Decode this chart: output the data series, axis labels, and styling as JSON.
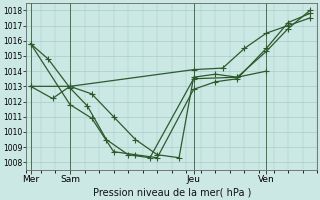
{
  "bg_color": "#cce8e4",
  "grid_color": "#9dc8c0",
  "line_color": "#2d5a2d",
  "xlabel": "Pression niveau de la mer( hPa )",
  "ylim": [
    1007.5,
    1018.5
  ],
  "yticks": [
    1008,
    1009,
    1010,
    1011,
    1012,
    1013,
    1014,
    1015,
    1016,
    1017,
    1018
  ],
  "xlim": [
    0,
    20
  ],
  "day_labels": [
    "Mer",
    "Sam",
    "Jeu",
    "Ven"
  ],
  "day_positions": [
    0.3,
    3.0,
    11.5,
    16.5
  ],
  "vline_positions": [
    0.3,
    3.0,
    11.5,
    16.5
  ],
  "series1_x": [
    0.3,
    1.5,
    3.0,
    4.2,
    5.5,
    7.0,
    8.5,
    11.5,
    14.5,
    16.5
  ],
  "series1_y": [
    1015.8,
    1014.8,
    1012.9,
    1011.7,
    1009.5,
    1008.5,
    1008.3,
    1013.5,
    1013.6,
    1014.0
  ],
  "series2_x": [
    0.3,
    3.0,
    4.5,
    6.0,
    7.5,
    9.0,
    11.5,
    13.0,
    14.5,
    16.5,
    18.0,
    19.5
  ],
  "series2_y": [
    1015.8,
    1011.8,
    1010.9,
    1008.7,
    1008.5,
    1008.3,
    1012.8,
    1013.3,
    1013.5,
    1015.5,
    1017.2,
    1017.8
  ],
  "series3_x": [
    0.3,
    3.0,
    11.5,
    13.5,
    15.0,
    16.5,
    18.0,
    19.5
  ],
  "series3_y": [
    1013.0,
    1013.0,
    1014.1,
    1014.2,
    1015.5,
    1016.5,
    1017.0,
    1017.5
  ],
  "series4_x": [
    0.3,
    1.8,
    3.0,
    4.5,
    6.0,
    7.5,
    9.0,
    10.5,
    11.5,
    13.0,
    14.5,
    16.5,
    18.0,
    19.5
  ],
  "series4_y": [
    1013.0,
    1012.2,
    1013.0,
    1012.5,
    1011.0,
    1009.5,
    1008.5,
    1008.3,
    1013.6,
    1013.8,
    1013.6,
    1015.3,
    1016.8,
    1018.0
  ]
}
